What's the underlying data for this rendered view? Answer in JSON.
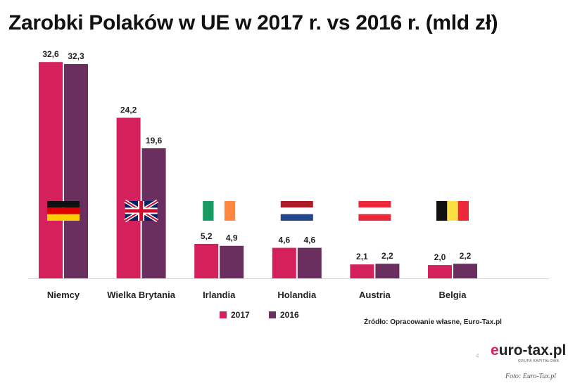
{
  "colors": {
    "series_2017": "#d4215c",
    "series_2016": "#6b2f5f"
  },
  "chart_data": {
    "type": "bar",
    "title": "Zarobki Polaków w UE w 2017 r. vs 2016 r. (mld zł)",
    "categories": [
      "Niemcy",
      "Wielka Brytania",
      "Irlandia",
      "Holandia",
      "Austria",
      "Belgia"
    ],
    "flags": [
      "flag-germany-icon",
      "flag-uk-icon",
      "flag-ireland-icon",
      "flag-netherlands-icon",
      "flag-austria-icon",
      "flag-belgium-icon"
    ],
    "series": [
      {
        "name": "2017",
        "values": [
          32.6,
          24.2,
          5.2,
          4.6,
          2.1,
          2.0
        ],
        "labels": [
          "32,6",
          "24,2",
          "5,2",
          "4,6",
          "2,1",
          "2,0"
        ]
      },
      {
        "name": "2016",
        "values": [
          32.3,
          19.6,
          4.9,
          4.6,
          2.2,
          2.2
        ],
        "labels": [
          "32,3",
          "19,6",
          "4,9",
          "4,6",
          "2,2",
          "2,2"
        ]
      }
    ],
    "ylim": [
      0,
      34
    ],
    "grid": false,
    "legend": "bottom"
  },
  "source": "Źródło: Opracowanie własne, Euro-Tax.pl",
  "logo": {
    "prefix": "e",
    "rest": "uro-tax.pl",
    "tagline": "GRUPA KAPITAŁOWA"
  },
  "page_number": "4",
  "credit": "Foto: Euro-Tax.pl"
}
